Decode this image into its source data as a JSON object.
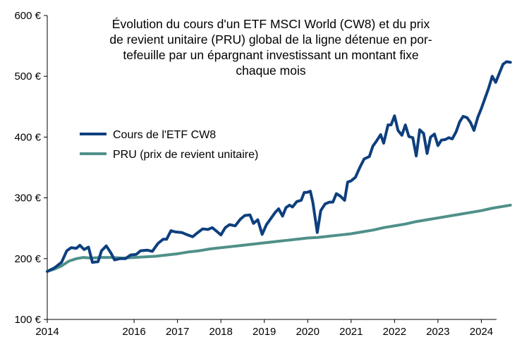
{
  "chart_data": {
    "type": "line",
    "title_lines": [
      "Évolution du cours d'un ETF MSCI World (CW8) et du prix",
      "de revient unitaire (PRU) global de la ligne détenue en por-",
      "tefeuille par un épargnant investissant un montant fixe",
      "chaque mois"
    ],
    "xlabel": "",
    "ylabel": "",
    "xlim": [
      2014,
      2024.35
    ],
    "ylim": [
      100,
      600
    ],
    "x_ticks": [
      2014,
      2016,
      2017,
      2018,
      2019,
      2020,
      2021,
      2022,
      2023,
      2024
    ],
    "x_tick_labels": [
      "2014",
      "2016",
      "2017",
      "2018",
      "2019",
      "2020",
      "2021",
      "2022",
      "2023",
      "2024"
    ],
    "y_ticks": [
      100,
      200,
      300,
      400,
      500,
      600
    ],
    "y_tick_labels": [
      "100 €",
      "200 €",
      "300 €",
      "400 €",
      "500 €",
      "600 €"
    ],
    "grid": false,
    "legend_position": "left-center",
    "series": [
      {
        "name": "Cours de l'ETF CW8",
        "color": "#0e3f7e",
        "points": [
          [
            2014.0,
            179
          ],
          [
            2014.17,
            185
          ],
          [
            2014.33,
            194
          ],
          [
            2014.45,
            213
          ],
          [
            2014.55,
            218
          ],
          [
            2014.67,
            217
          ],
          [
            2014.75,
            222
          ],
          [
            2014.85,
            215
          ],
          [
            2014.95,
            219
          ],
          [
            2015.04,
            194
          ],
          [
            2015.17,
            195
          ],
          [
            2015.25,
            213
          ],
          [
            2015.36,
            221
          ],
          [
            2015.47,
            209
          ],
          [
            2015.55,
            198
          ],
          [
            2015.67,
            200
          ],
          [
            2015.8,
            200
          ],
          [
            2015.92,
            206
          ],
          [
            2016.05,
            207
          ],
          [
            2016.15,
            213
          ],
          [
            2016.3,
            214
          ],
          [
            2016.42,
            212
          ],
          [
            2016.55,
            225
          ],
          [
            2016.67,
            232
          ],
          [
            2016.75,
            232
          ],
          [
            2016.85,
            246
          ],
          [
            2016.95,
            244
          ],
          [
            2017.1,
            243
          ],
          [
            2017.2,
            240
          ],
          [
            2017.35,
            236
          ],
          [
            2017.45,
            242
          ],
          [
            2017.58,
            249
          ],
          [
            2017.7,
            248
          ],
          [
            2017.8,
            251
          ],
          [
            2017.92,
            244
          ],
          [
            2018.0,
            239
          ],
          [
            2018.1,
            251
          ],
          [
            2018.2,
            256
          ],
          [
            2018.33,
            254
          ],
          [
            2018.45,
            265
          ],
          [
            2018.55,
            271
          ],
          [
            2018.67,
            272
          ],
          [
            2018.75,
            258
          ],
          [
            2018.85,
            264
          ],
          [
            2018.95,
            240
          ],
          [
            2019.05,
            256
          ],
          [
            2019.15,
            266
          ],
          [
            2019.25,
            276
          ],
          [
            2019.33,
            282
          ],
          [
            2019.42,
            270
          ],
          [
            2019.5,
            284
          ],
          [
            2019.58,
            288
          ],
          [
            2019.65,
            285
          ],
          [
            2019.75,
            294
          ],
          [
            2019.85,
            296
          ],
          [
            2019.92,
            309
          ],
          [
            2019.98,
            309
          ],
          [
            2020.06,
            311
          ],
          [
            2020.12,
            292
          ],
          [
            2020.22,
            243
          ],
          [
            2020.3,
            279
          ],
          [
            2020.4,
            290
          ],
          [
            2020.5,
            293
          ],
          [
            2020.58,
            293
          ],
          [
            2020.66,
            307
          ],
          [
            2020.75,
            303
          ],
          [
            2020.85,
            296
          ],
          [
            2020.92,
            326
          ],
          [
            2021.0,
            328
          ],
          [
            2021.1,
            334
          ],
          [
            2021.2,
            350
          ],
          [
            2021.3,
            364
          ],
          [
            2021.42,
            368
          ],
          [
            2021.5,
            385
          ],
          [
            2021.58,
            393
          ],
          [
            2021.68,
            404
          ],
          [
            2021.75,
            390
          ],
          [
            2021.85,
            420
          ],
          [
            2021.92,
            420
          ],
          [
            2022.0,
            435
          ],
          [
            2022.08,
            411
          ],
          [
            2022.17,
            403
          ],
          [
            2022.25,
            420
          ],
          [
            2022.33,
            401
          ],
          [
            2022.42,
            399
          ],
          [
            2022.5,
            369
          ],
          [
            2022.58,
            412
          ],
          [
            2022.67,
            406
          ],
          [
            2022.75,
            373
          ],
          [
            2022.83,
            400
          ],
          [
            2022.92,
            405
          ],
          [
            2023.0,
            386
          ],
          [
            2023.08,
            395
          ],
          [
            2023.17,
            396
          ],
          [
            2023.25,
            399
          ],
          [
            2023.33,
            397
          ],
          [
            2023.42,
            409
          ],
          [
            2023.5,
            425
          ],
          [
            2023.58,
            434
          ],
          [
            2023.67,
            432
          ],
          [
            2023.75,
            424
          ],
          [
            2023.83,
            411
          ],
          [
            2023.92,
            433
          ],
          [
            2024.0,
            447
          ],
          [
            2024.08,
            463
          ],
          [
            2024.17,
            481
          ],
          [
            2024.25,
            500
          ],
          [
            2024.33,
            490
          ],
          [
            2024.42,
            506
          ],
          [
            2024.5,
            520
          ],
          [
            2024.58,
            524
          ],
          [
            2024.67,
            523
          ]
        ]
      },
      {
        "name": "PRU (prix de revient unitaire)",
        "color": "#4f9089",
        "points": [
          [
            2014.0,
            179
          ],
          [
            2014.17,
            183
          ],
          [
            2014.33,
            188
          ],
          [
            2014.5,
            196
          ],
          [
            2014.67,
            200
          ],
          [
            2014.83,
            202
          ],
          [
            2015.0,
            201
          ],
          [
            2015.25,
            202
          ],
          [
            2015.5,
            202
          ],
          [
            2015.75,
            201
          ],
          [
            2016.0,
            202
          ],
          [
            2016.25,
            203
          ],
          [
            2016.5,
            204
          ],
          [
            2016.75,
            206
          ],
          [
            2017.0,
            208
          ],
          [
            2017.25,
            211
          ],
          [
            2017.5,
            213
          ],
          [
            2017.75,
            216
          ],
          [
            2018.0,
            218
          ],
          [
            2018.25,
            220
          ],
          [
            2018.5,
            222
          ],
          [
            2018.75,
            224
          ],
          [
            2019.0,
            226
          ],
          [
            2019.25,
            228
          ],
          [
            2019.5,
            230
          ],
          [
            2019.75,
            232
          ],
          [
            2020.0,
            234
          ],
          [
            2020.25,
            235
          ],
          [
            2020.5,
            237
          ],
          [
            2020.75,
            239
          ],
          [
            2021.0,
            241
          ],
          [
            2021.25,
            244
          ],
          [
            2021.5,
            247
          ],
          [
            2021.75,
            251
          ],
          [
            2022.0,
            254
          ],
          [
            2022.25,
            257
          ],
          [
            2022.5,
            261
          ],
          [
            2022.75,
            264
          ],
          [
            2023.0,
            267
          ],
          [
            2023.25,
            270
          ],
          [
            2023.5,
            273
          ],
          [
            2023.75,
            276
          ],
          [
            2024.0,
            279
          ],
          [
            2024.25,
            283
          ],
          [
            2024.5,
            286
          ],
          [
            2024.67,
            288
          ]
        ]
      }
    ]
  }
}
